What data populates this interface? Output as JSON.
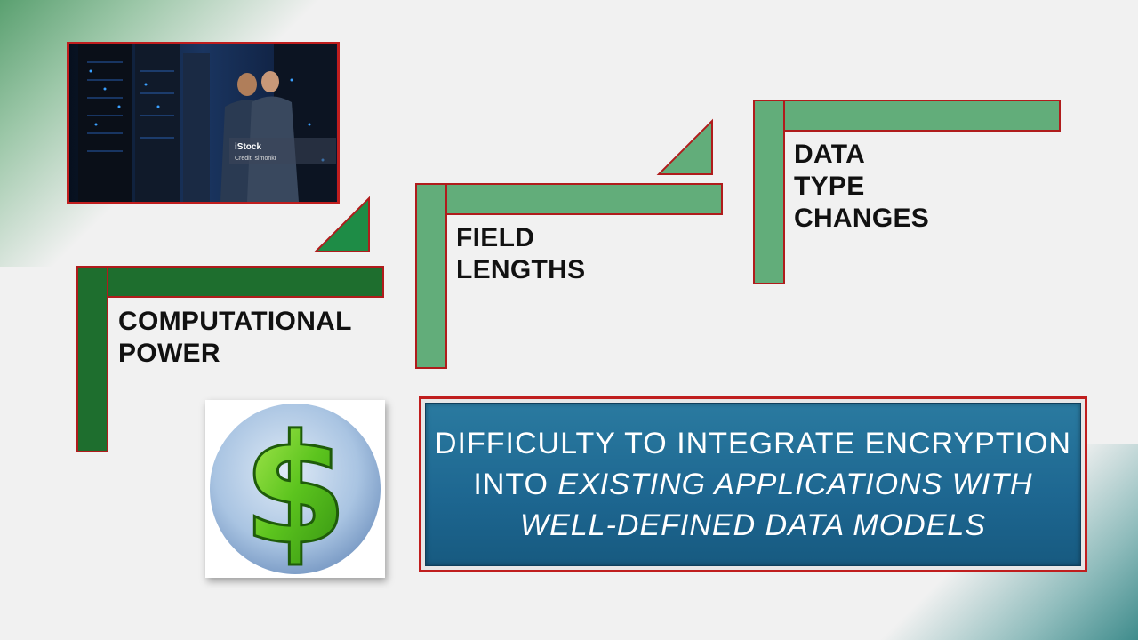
{
  "slide": {
    "steps": [
      {
        "label_line1": "COMPUTATIONAL",
        "label_line2": "POWER",
        "color": "#1e6e2e"
      },
      {
        "label": "FIELD LENGTHS",
        "color": "#62ad7a"
      },
      {
        "label_line1": "DATA TYPE",
        "label_line2": "CHANGES",
        "color": "#62ad7a"
      }
    ],
    "photo": {
      "watermark": "iStock",
      "credit": "Credit: simonkr"
    },
    "money_icon": {
      "symbol": "$"
    },
    "banner": {
      "line1": "DIFFICULTY TO INTEGRATE ENCRYPTION",
      "line2_plain": "INTO ",
      "line2_italic": "EXISTING APPLICATIONS WITH",
      "line3_italic": "WELL-DEFINED DATA MODELS"
    },
    "colors": {
      "dark_green": "#1e6e2e",
      "light_green": "#62ad7a",
      "border_red": "#b01c1c",
      "banner_blue": "#1d6690"
    }
  }
}
